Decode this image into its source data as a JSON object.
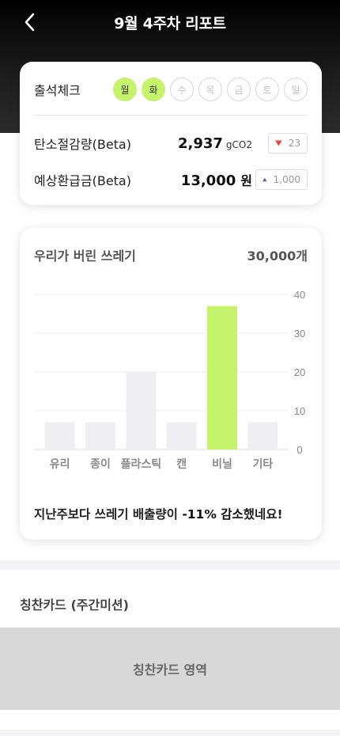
{
  "header": {
    "title": "9월 4주차 리포트"
  },
  "attendance": {
    "label": "출석체크",
    "days": [
      {
        "label": "월",
        "checked": true
      },
      {
        "label": "화",
        "checked": true
      },
      {
        "label": "수",
        "checked": false
      },
      {
        "label": "목",
        "checked": false
      },
      {
        "label": "금",
        "checked": false
      },
      {
        "label": "토",
        "checked": false
      },
      {
        "label": "일",
        "checked": false
      }
    ]
  },
  "metrics": {
    "carbon": {
      "label": "탄소절감량(Beta)",
      "value": "2,937",
      "unit": "gCO2",
      "delta": "23",
      "direction": "down"
    },
    "refund": {
      "label": "예상환급금(Beta)",
      "value": "13,000",
      "unit": "원",
      "delta": "1,000",
      "direction": "up"
    }
  },
  "colors": {
    "accent": "#c5f36b",
    "bar": "#efeff3",
    "down_arrow": "#e8493b",
    "up_arrow": "#5560d6"
  },
  "chart": {
    "title": "우리가 버린 쓰레기",
    "total": "30,000개",
    "footer_prefix": "지난주보다 쓰레기 배출량이 ",
    "footer_highlight": "-11% 감소",
    "footer_suffix": "했네요!"
  },
  "chart_data": {
    "type": "bar",
    "categories": [
      "유리",
      "종이",
      "플라스틱",
      "캔",
      "비닐",
      "기타"
    ],
    "values": [
      7,
      7,
      20,
      7,
      37,
      7
    ],
    "highlight_index": 4,
    "yticks": [
      0,
      10,
      20,
      30,
      40
    ],
    "ylim": [
      0,
      40
    ],
    "title": "우리가 버린 쓰레기"
  },
  "praise": {
    "section_title": "칭찬카드 (주간미션)",
    "placeholder": "칭찬카드 영역"
  }
}
